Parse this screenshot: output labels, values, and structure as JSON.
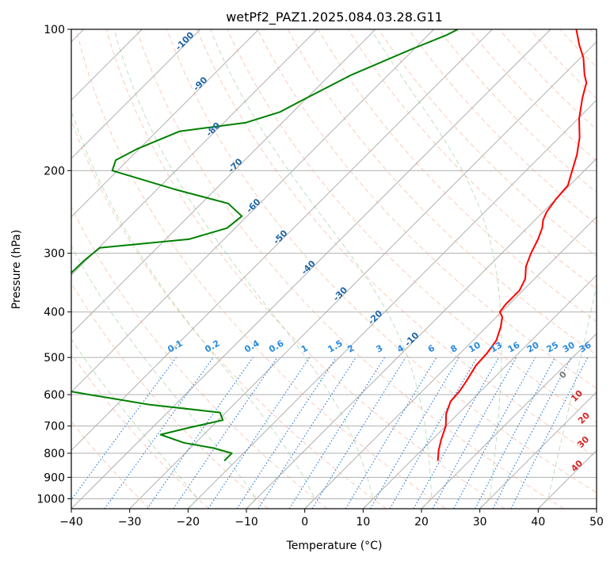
{
  "chart_data": {
    "type": "skew-t",
    "title": "wetPf2_PAZ1.2025.084.03.28.G11",
    "xlabel": "Temperature (°C)",
    "ylabel": "Pressure (hPa)",
    "xlim": [
      -40,
      50
    ],
    "ylim": [
      1050,
      100
    ],
    "y_scale": "log",
    "xticks": [
      -40,
      -30,
      -20,
      -10,
      0,
      10,
      20,
      30,
      40,
      50
    ],
    "xtick_labels": [
      "−40",
      "−30",
      "−20",
      "−10",
      "0",
      "10",
      "20",
      "30",
      "40",
      "50"
    ],
    "yticks": [
      100,
      200,
      300,
      400,
      500,
      600,
      700,
      800,
      900,
      1000
    ],
    "ytick_labels": [
      "100",
      "200",
      "300",
      "400",
      "500",
      "600",
      "700",
      "800",
      "900",
      "1000"
    ],
    "grid": true,
    "series": [
      {
        "role": "temperature",
        "color": "#ff0000",
        "points": [
          [
            830,
            14.6
          ],
          [
            790,
            13.0
          ],
          [
            750,
            11.6
          ],
          [
            700,
            10.0
          ],
          [
            660,
            8.0
          ],
          [
            620,
            6.6
          ],
          [
            590,
            6.4
          ],
          [
            560,
            5.8
          ],
          [
            520,
            4.8
          ],
          [
            490,
            4.6
          ],
          [
            460,
            4.0
          ],
          [
            430,
            2.4
          ],
          [
            410,
            1.0
          ],
          [
            400,
            -0.3
          ],
          [
            385,
            -0.6
          ],
          [
            360,
            -0.6
          ],
          [
            340,
            -1.6
          ],
          [
            320,
            -3.6
          ],
          [
            300,
            -5.0
          ],
          [
            280,
            -6.2
          ],
          [
            265,
            -7.4
          ],
          [
            255,
            -8.6
          ],
          [
            245,
            -9.4
          ],
          [
            230,
            -10.0
          ],
          [
            215,
            -10.3
          ],
          [
            200,
            -12.1
          ],
          [
            185,
            -14.0
          ],
          [
            170,
            -16.5
          ],
          [
            155,
            -19.8
          ],
          [
            140,
            -22.8
          ],
          [
            130,
            -24.7
          ],
          [
            125,
            -26.4
          ],
          [
            115,
            -29.5
          ],
          [
            108,
            -32.4
          ],
          [
            100,
            -35.6
          ]
        ]
      },
      {
        "role": "dewpoint",
        "color": "#008000",
        "points": [
          [
            830,
            -22.0
          ],
          [
            815,
            -22.0
          ],
          [
            800,
            -22.0
          ],
          [
            780,
            -26.0
          ],
          [
            760,
            -32.0
          ],
          [
            730,
            -37.4
          ],
          [
            705,
            -33.6
          ],
          [
            680,
            -29.2
          ],
          [
            655,
            -31.0
          ],
          [
            630,
            -44.5
          ],
          [
            600,
            -56.5
          ],
          [
            585,
            -62.5
          ],
          [
            555,
            -64.0
          ],
          [
            530,
            -69.5
          ],
          [
            500,
            -74.0
          ],
          [
            450,
            -79.0
          ],
          [
            380,
            -82.0
          ],
          [
            330,
            -80.4
          ],
          [
            310,
            -80.3
          ],
          [
            292,
            -79.8
          ],
          [
            280,
            -66.0
          ],
          [
            265,
            -61.4
          ],
          [
            250,
            -60.9
          ],
          [
            235,
            -65.4
          ],
          [
            220,
            -76.4
          ],
          [
            200,
            -90.9
          ],
          [
            190,
            -92.1
          ],
          [
            180,
            -90.4
          ],
          [
            165,
            -86.1
          ],
          [
            158,
            -76.2
          ],
          [
            150,
            -72.2
          ],
          [
            142,
            -70.5
          ],
          [
            125,
            -66.3
          ],
          [
            110,
            -60.3
          ],
          [
            103,
            -56.9
          ],
          [
            100,
            -55.9
          ]
        ]
      }
    ],
    "adiabat_labels": [
      "-100",
      "-90",
      "-80",
      "-70",
      "-60",
      "-50",
      "-40",
      "-30",
      "-20",
      "-10"
    ],
    "mixing_ratio_labels": [
      "0.1",
      "0.2",
      "0.4",
      "0.6",
      "1",
      "1.5",
      "2",
      "3",
      "4",
      "6",
      "8",
      "10",
      "13",
      "16",
      "20",
      "25",
      "30",
      "36"
    ],
    "moist_adiabat_labels": [
      "0",
      "10",
      "20",
      "30",
      "40"
    ]
  }
}
